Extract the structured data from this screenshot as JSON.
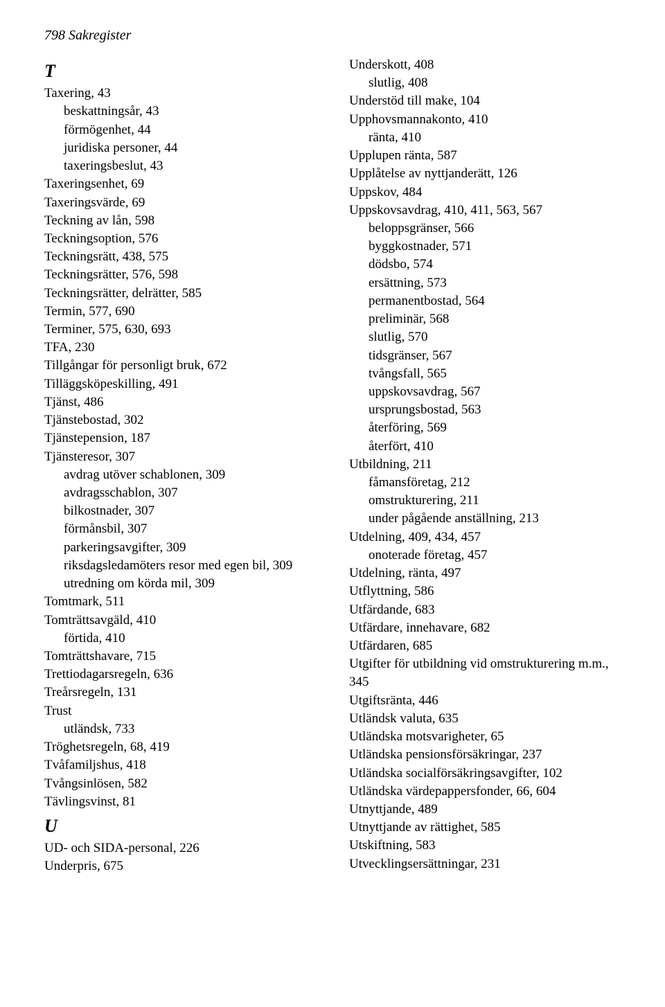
{
  "header": "798  Sakregister",
  "left": [
    {
      "t": "letter",
      "v": "T"
    },
    {
      "t": "main",
      "v": "Taxering, 43"
    },
    {
      "t": "sub",
      "v": "beskattningsår, 43"
    },
    {
      "t": "sub",
      "v": "förmögenhet, 44"
    },
    {
      "t": "sub",
      "v": "juridiska personer, 44"
    },
    {
      "t": "sub",
      "v": "taxeringsbeslut, 43"
    },
    {
      "t": "main",
      "v": "Taxeringsenhet, 69"
    },
    {
      "t": "main",
      "v": "Taxeringsvärde, 69"
    },
    {
      "t": "main",
      "v": "Teckning av lån, 598"
    },
    {
      "t": "main",
      "v": "Teckningsoption, 576"
    },
    {
      "t": "main",
      "v": "Teckningsrätt, 438, 575"
    },
    {
      "t": "main",
      "v": "Teckningsrätter, 576, 598"
    },
    {
      "t": "main",
      "v": "Teckningsrätter, delrätter, 585"
    },
    {
      "t": "main",
      "v": "Termin, 577, 690"
    },
    {
      "t": "main",
      "v": "Terminer, 575, 630, 693"
    },
    {
      "t": "main",
      "v": "TFA, 230"
    },
    {
      "t": "main",
      "v": "Tillgångar för personligt bruk, 672"
    },
    {
      "t": "main",
      "v": "Tilläggsköpeskilling, 491"
    },
    {
      "t": "main",
      "v": "Tjänst, 486"
    },
    {
      "t": "main",
      "v": "Tjänstebostad, 302"
    },
    {
      "t": "main",
      "v": "Tjänstepension, 187"
    },
    {
      "t": "main",
      "v": "Tjänsteresor, 307"
    },
    {
      "t": "sub",
      "v": "avdrag utöver schablonen, 309"
    },
    {
      "t": "sub",
      "v": "avdragsschablon, 307"
    },
    {
      "t": "sub",
      "v": "bilkostnader, 307"
    },
    {
      "t": "sub",
      "v": "förmånsbil, 307"
    },
    {
      "t": "sub",
      "v": "parkeringsavgifter, 309"
    },
    {
      "t": "sub",
      "v": "riksdagsledamöters resor med egen bil, 309"
    },
    {
      "t": "sub",
      "v": "utredning om körda mil, 309"
    },
    {
      "t": "main",
      "v": "Tomtmark, 511"
    },
    {
      "t": "main",
      "v": "Tomträttsavgäld, 410"
    },
    {
      "t": "sub",
      "v": "förtida, 410"
    },
    {
      "t": "main",
      "v": "Tomträttshavare, 715"
    },
    {
      "t": "main",
      "v": "Trettiodagarsregeln, 636"
    },
    {
      "t": "main",
      "v": "Treårsregeln, 131"
    },
    {
      "t": "main",
      "v": "Trust"
    },
    {
      "t": "sub",
      "v": "utländsk, 733"
    },
    {
      "t": "main",
      "v": "Tröghetsregeln, 68, 419"
    },
    {
      "t": "main",
      "v": "Tvåfamiljshus, 418"
    },
    {
      "t": "main",
      "v": "Tvångsinlösen, 582"
    },
    {
      "t": "main",
      "v": "Tävlingsvinst, 81"
    },
    {
      "t": "letter",
      "v": "U"
    },
    {
      "t": "main",
      "v": "UD- och SIDA-personal, 226"
    },
    {
      "t": "main",
      "v": "Underpris, 675"
    }
  ],
  "right": [
    {
      "t": "main",
      "v": "Underskott, 408"
    },
    {
      "t": "sub",
      "v": "slutlig, 408"
    },
    {
      "t": "main",
      "v": "Understöd till make, 104"
    },
    {
      "t": "main",
      "v": "Upphovsmannakonto, 410"
    },
    {
      "t": "sub",
      "v": "ränta, 410"
    },
    {
      "t": "main",
      "v": "Upplupen ränta, 587"
    },
    {
      "t": "main",
      "v": "Upplåtelse av nyttjanderätt, 126"
    },
    {
      "t": "main",
      "v": "Uppskov, 484"
    },
    {
      "t": "main",
      "v": "Uppskovsavdrag, 410, 411, 563, 567"
    },
    {
      "t": "sub",
      "v": "beloppsgränser, 566"
    },
    {
      "t": "sub",
      "v": "byggkostnader, 571"
    },
    {
      "t": "sub",
      "v": "dödsbo, 574"
    },
    {
      "t": "sub",
      "v": "ersättning, 573"
    },
    {
      "t": "sub",
      "v": "permanentbostad, 564"
    },
    {
      "t": "sub",
      "v": "preliminär, 568"
    },
    {
      "t": "sub",
      "v": "slutlig, 570"
    },
    {
      "t": "sub",
      "v": "tidsgränser, 567"
    },
    {
      "t": "sub",
      "v": "tvångsfall, 565"
    },
    {
      "t": "sub",
      "v": "uppskovsavdrag, 567"
    },
    {
      "t": "sub",
      "v": "ursprungsbostad, 563"
    },
    {
      "t": "sub",
      "v": "återföring, 569"
    },
    {
      "t": "sub",
      "v": "återfört, 410"
    },
    {
      "t": "main",
      "v": "Utbildning, 211"
    },
    {
      "t": "sub",
      "v": "fåmansföretag, 212"
    },
    {
      "t": "sub",
      "v": "omstrukturering, 211"
    },
    {
      "t": "sub",
      "v": "under pågående anställning, 213"
    },
    {
      "t": "main",
      "v": "Utdelning, 409, 434, 457"
    },
    {
      "t": "sub",
      "v": "onoterade företag, 457"
    },
    {
      "t": "main",
      "v": "Utdelning, ränta, 497"
    },
    {
      "t": "main",
      "v": "Utflyttning, 586"
    },
    {
      "t": "main",
      "v": "Utfärdande, 683"
    },
    {
      "t": "main",
      "v": "Utfärdare, innehavare, 682"
    },
    {
      "t": "main",
      "v": "Utfärdaren, 685"
    },
    {
      "t": "main",
      "v": "Utgifter för utbildning vid omstrukturering m.m., 345"
    },
    {
      "t": "main",
      "v": "Utgiftsränta, 446"
    },
    {
      "t": "main",
      "v": "Utländsk valuta, 635"
    },
    {
      "t": "main",
      "v": "Utländska motsvarigheter, 65"
    },
    {
      "t": "main",
      "v": "Utländska pensionsförsäkringar, 237"
    },
    {
      "t": "main",
      "v": "Utländska socialförsäkringsavgifter, 102"
    },
    {
      "t": "main",
      "v": "Utländska värdepappersfonder, 66, 604"
    },
    {
      "t": "main",
      "v": "Utnyttjande, 489"
    },
    {
      "t": "main",
      "v": "Utnyttjande av rättighet, 585"
    },
    {
      "t": "main",
      "v": "Utskiftning, 583"
    },
    {
      "t": "main",
      "v": "Utvecklingsersättningar, 231"
    }
  ]
}
